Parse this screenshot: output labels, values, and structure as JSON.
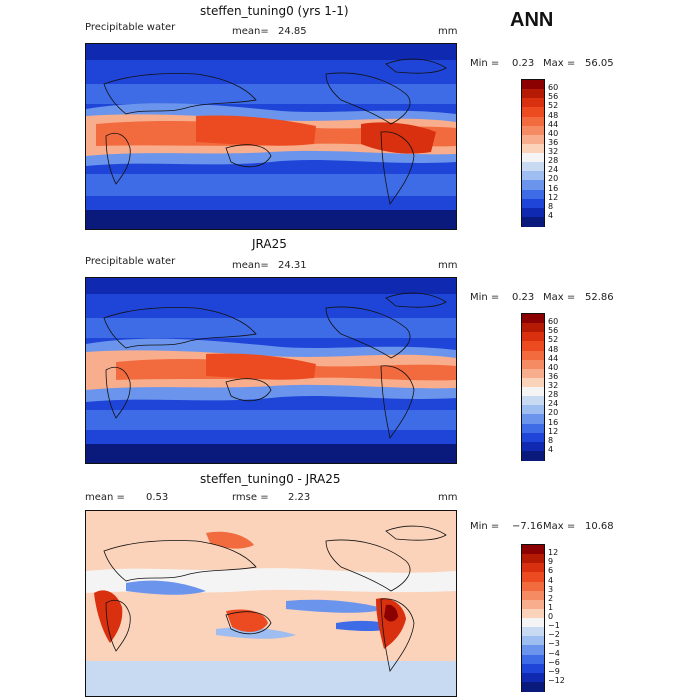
{
  "season": "ANN",
  "panels": [
    {
      "title": "steffen_tuning0 (yrs 1-1)",
      "left_label": "Precipitable water",
      "mean_label": "mean=",
      "mean_value": "24.85",
      "units": "mm",
      "min_label": "Min =",
      "min_value": "0.23",
      "max_label": "Max =",
      "max_value": "56.05",
      "colorbar": {
        "labels": [
          "60",
          "56",
          "52",
          "48",
          "44",
          "40",
          "36",
          "32",
          "28",
          "24",
          "20",
          "16",
          "12",
          "8",
          "4"
        ],
        "colors": [
          "#8b0000",
          "#b51a05",
          "#d9300f",
          "#ec4a20",
          "#f26b3f",
          "#f58b63",
          "#f8ae8c",
          "#fbd2ba",
          "#f4f4f4",
          "#c8d9f2",
          "#9ebdf0",
          "#6b95ec",
          "#3e6be6",
          "#1f45d8",
          "#0f29b0",
          "#0a1a7c"
        ]
      }
    },
    {
      "title": "JRA25",
      "left_label": "Precipitable water",
      "mean_label": "mean=",
      "mean_value": "24.31",
      "units": "mm",
      "min_label": "Min =",
      "min_value": "0.23",
      "max_label": "Max =",
      "max_value": "52.86",
      "colorbar": {
        "labels": [
          "60",
          "56",
          "52",
          "48",
          "44",
          "40",
          "36",
          "32",
          "28",
          "24",
          "20",
          "16",
          "12",
          "8",
          "4"
        ],
        "colors": [
          "#8b0000",
          "#b51a05",
          "#d9300f",
          "#ec4a20",
          "#f26b3f",
          "#f58b63",
          "#f8ae8c",
          "#fbd2ba",
          "#f4f4f4",
          "#c8d9f2",
          "#9ebdf0",
          "#6b95ec",
          "#3e6be6",
          "#1f45d8",
          "#0f29b0",
          "#0a1a7c"
        ]
      }
    },
    {
      "title": "steffen_tuning0 - JRA25",
      "left_label": "mean =",
      "left_value": "0.53",
      "mean_label": "rmse =",
      "mean_value": "2.23",
      "units": "mm",
      "min_label": "Min =",
      "min_value": "−7.16",
      "max_label": "Max =",
      "max_value": "10.68",
      "colorbar": {
        "labels": [
          "12",
          "9",
          "6",
          "4",
          "3",
          "2",
          "1",
          "0",
          "−1",
          "−2",
          "−3",
          "−4",
          "−6",
          "−9",
          "−12"
        ],
        "colors": [
          "#8b0000",
          "#b51a05",
          "#d9300f",
          "#ec4a20",
          "#f26b3f",
          "#f58b63",
          "#f8ae8c",
          "#fbd2ba",
          "#f4f4f4",
          "#c8d9f2",
          "#9ebdf0",
          "#6b95ec",
          "#3e6be6",
          "#1f45d8",
          "#0f29b0",
          "#0a1a7c"
        ]
      }
    }
  ]
}
